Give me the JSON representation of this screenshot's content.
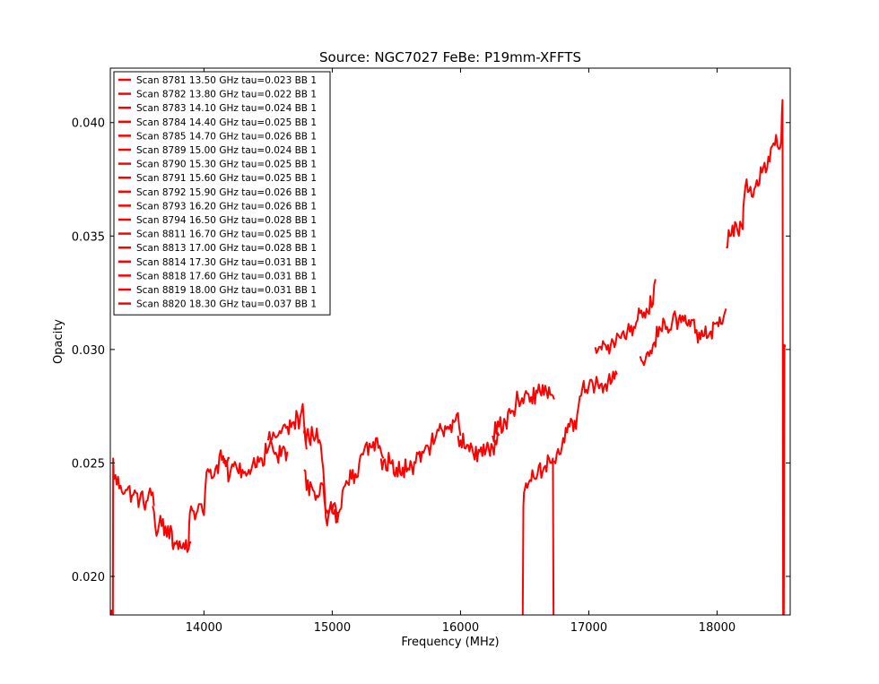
{
  "chart_data": {
    "type": "line",
    "title": "Source: NGC7027 FeBe: P19mm-XFFTS",
    "xlabel": "Frequency (MHz)",
    "ylabel": "Opacity",
    "xlim": [
      13270,
      18570
    ],
    "ylim": [
      0.0183,
      0.0424
    ],
    "x_ticks": [
      14000,
      15000,
      16000,
      17000,
      18000
    ],
    "y_ticks": [
      0.02,
      0.025,
      0.03,
      0.035,
      0.04
    ],
    "x_tick_labels": [
      "14000",
      "15000",
      "16000",
      "17000",
      "18000"
    ],
    "y_tick_labels": [
      "0.020",
      "0.025",
      "0.030",
      "0.035",
      "0.040"
    ],
    "grid": false,
    "legend_position": "top-left",
    "line_color": "#ff0000",
    "series": [
      {
        "name": "Scan 8781 13.50 GHz tau=0.023 BB 1",
        "x": [
          13270,
          13290,
          13292,
          13300,
          13350,
          13400,
          13450,
          13500,
          13550,
          13600,
          13610
        ],
        "y": [
          0.0183,
          0.0183,
          0.0252,
          0.0243,
          0.024,
          0.0238,
          0.0236,
          0.0234,
          0.0233,
          0.0237,
          0.0231
        ]
      },
      {
        "name": "Scan 8782 13.80 GHz tau=0.022 BB 1",
        "x": [
          13600,
          13620,
          13650,
          13700,
          13750,
          13760,
          13800,
          13850,
          13880,
          13900
        ],
        "y": [
          0.0231,
          0.0222,
          0.0223,
          0.0222,
          0.022,
          0.0212,
          0.0212,
          0.0212,
          0.0212,
          0.0215
        ]
      },
      {
        "name": "Scan 8783 14.10 GHz tau=0.024 BB 1",
        "x": [
          13880,
          13890,
          13950,
          14000,
          14020,
          14040,
          14100,
          14150,
          14180,
          14200
        ],
        "y": [
          0.0213,
          0.0228,
          0.0229,
          0.0227,
          0.0246,
          0.0246,
          0.0249,
          0.0253,
          0.025,
          0.0252
        ]
      },
      {
        "name": "Scan 8784 14.40 GHz tau=0.025 BB 1",
        "x": [
          14150,
          14200,
          14250,
          14300,
          14350,
          14400,
          14450,
          14500,
          14520,
          14550,
          14600,
          14650
        ],
        "y": [
          0.025,
          0.0244,
          0.0249,
          0.0247,
          0.0247,
          0.0248,
          0.0252,
          0.0256,
          0.026,
          0.0254,
          0.0253,
          0.0255
        ]
      },
      {
        "name": "Scan 8785 14.70 GHz tau=0.026 BB 1",
        "x": [
          14500,
          14550,
          14600,
          14650,
          14700,
          14750,
          14770,
          14790,
          14800
        ],
        "y": [
          0.026,
          0.0262,
          0.0263,
          0.0266,
          0.0268,
          0.027,
          0.0276,
          0.026,
          0.0256
        ]
      },
      {
        "name": "Scan 8789 15.00 GHz tau=0.024 BB 1",
        "x": [
          14780,
          14790,
          14800,
          14850,
          14900,
          14920,
          14950,
          15000,
          15050
        ],
        "y": [
          0.0263,
          0.0261,
          0.0262,
          0.0262,
          0.026,
          0.0252,
          0.0226,
          0.0228,
          0.0228
        ]
      },
      {
        "name": "Scan 8790 15.30 GHz tau=0.025 BB 1",
        "x": [
          14780,
          14800,
          14850,
          14900,
          14930,
          14950,
          15000,
          15050,
          15070
        ],
        "y": [
          0.0247,
          0.0238,
          0.0238,
          0.0236,
          0.024,
          0.0228,
          0.0229,
          0.0228,
          0.023
        ]
      },
      {
        "name": "Scan 8791 15.60 GHz tau=0.025 BB 1",
        "x": [
          15070,
          15100,
          15150,
          15200,
          15230,
          15250,
          15300,
          15350,
          15380,
          15400
        ],
        "y": [
          0.023,
          0.024,
          0.0243,
          0.0244,
          0.0254,
          0.0256,
          0.0257,
          0.0261,
          0.0255,
          0.0252
        ]
      },
      {
        "name": "Scan 8792 15.90 GHz tau=0.026 BB 1",
        "x": [
          15380,
          15400,
          15450,
          15500,
          15550,
          15600,
          15650,
          15680,
          15700
        ],
        "y": [
          0.0252,
          0.0251,
          0.025,
          0.0248,
          0.0248,
          0.0247,
          0.025,
          0.0255,
          0.0254
        ]
      },
      {
        "name": "Scan 8793 16.20 GHz tau=0.026 BB 1",
        "x": [
          15680,
          15700,
          15750,
          15800,
          15850,
          15900,
          15950,
          15980,
          16000
        ],
        "y": [
          0.0254,
          0.0255,
          0.0257,
          0.026,
          0.0265,
          0.0266,
          0.0268,
          0.0272,
          0.0262
        ]
      },
      {
        "name": "Scan 8794 16.50 GHz tau=0.028 BB 1",
        "x": [
          15980,
          16000,
          16050,
          16100,
          16150,
          16200,
          16250,
          16300
        ],
        "y": [
          0.0262,
          0.026,
          0.0258,
          0.0254,
          0.0255,
          0.0256,
          0.0257,
          0.0262
        ]
      },
      {
        "name": "Scan 8811 16.70 GHz tau=0.025 BB 1",
        "x": [
          16250,
          16300,
          16350,
          16400,
          16450,
          16500,
          16550,
          16600,
          16650,
          16700,
          16730
        ],
        "y": [
          0.0262,
          0.0266,
          0.0268,
          0.0273,
          0.0278,
          0.028,
          0.0279,
          0.0281,
          0.028,
          0.028,
          0.0278
        ]
      },
      {
        "name": "Scan 8813 17.00 GHz tau=0.028 BB 1",
        "x": [
          16480,
          16485,
          16490,
          16500,
          16550,
          16600,
          16650,
          16700,
          16720,
          16725,
          16730
        ],
        "y": [
          0.0183,
          0.0183,
          0.0231,
          0.0238,
          0.0242,
          0.0245,
          0.0248,
          0.025,
          0.0252,
          0.0183,
          0.0183
        ]
      },
      {
        "name": "Scan 8814 17.30 GHz tau=0.031 BB 1",
        "x": [
          16730,
          16750,
          16800,
          16850,
          16900,
          16920,
          16950,
          17000,
          17050,
          17100,
          17150,
          17200,
          17220
        ],
        "y": [
          0.0251,
          0.0254,
          0.0261,
          0.0266,
          0.0265,
          0.0275,
          0.0283,
          0.0284,
          0.0284,
          0.0285,
          0.0286,
          0.0287,
          0.0289
        ]
      },
      {
        "name": "Scan 8818 17.60 GHz tau=0.031 BB 1",
        "x": [
          17050,
          17100,
          17150,
          17200,
          17250,
          17300,
          17350,
          17400,
          17450,
          17500,
          17520
        ],
        "y": [
          0.0301,
          0.03,
          0.0302,
          0.0301,
          0.0305,
          0.0308,
          0.031,
          0.0316,
          0.0318,
          0.032,
          0.0331
        ]
      },
      {
        "name": "Scan 8819 18.00 GHz tau=0.031 BB 1",
        "x": [
          17400,
          17450,
          17500,
          17550,
          17600,
          17650,
          17700,
          17750,
          17800,
          17850,
          17900,
          17950,
          18000,
          18050,
          18070
        ],
        "y": [
          0.0297,
          0.0298,
          0.0302,
          0.031,
          0.0309,
          0.0312,
          0.0313,
          0.0315,
          0.0313,
          0.0303,
          0.0306,
          0.0308,
          0.0312,
          0.0314,
          0.0318
        ]
      },
      {
        "name": "Scan 8820 18.30 GHz tau=0.037 BB 1",
        "x": [
          18070,
          18100,
          18150,
          18200,
          18210,
          18230,
          18250,
          18300,
          18350,
          18400,
          18450,
          18500,
          18510,
          18515,
          18520,
          18525,
          18530
        ],
        "y": [
          0.0345,
          0.035,
          0.0355,
          0.0353,
          0.0366,
          0.0375,
          0.037,
          0.0372,
          0.0378,
          0.0385,
          0.039,
          0.0392,
          0.041,
          0.0183,
          0.0183,
          0.0302,
          0.0302
        ]
      }
    ]
  }
}
